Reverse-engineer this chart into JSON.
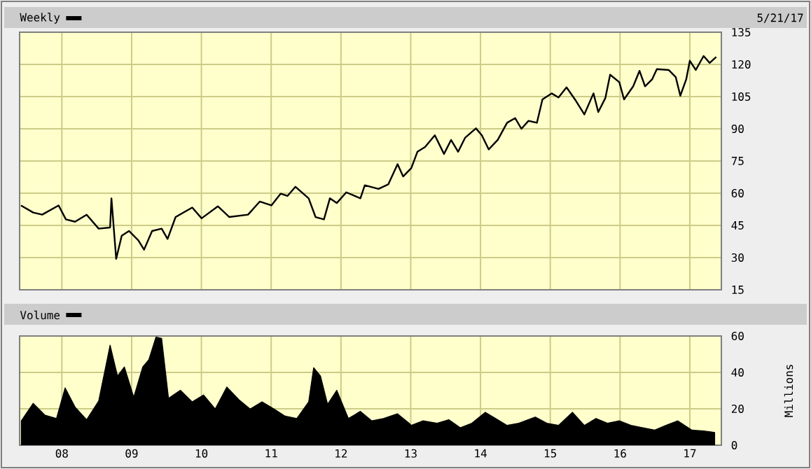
{
  "chart_data": [
    {
      "type": "line",
      "annotations": [
        "5/21/17"
      ],
      "legend": "top left",
      "grid": true,
      "tick_labels": "y",
      "line_style": "solid",
      "xlim": [
        "2007-05-25",
        "2017-06-15"
      ],
      "ylim": [
        15,
        135
      ],
      "yticks": [
        15,
        30,
        45,
        60,
        75,
        90,
        105,
        120,
        135
      ],
      "xticks": [
        {
          "value": "2008-01-01",
          "label": null
        },
        {
          "value": "2009-01-01",
          "label": null
        },
        {
          "value": "2010-01-01",
          "label": null
        },
        {
          "value": "2011-01-01",
          "label": null
        },
        {
          "value": "2012-01-01",
          "label": null
        },
        {
          "value": "2013-01-01",
          "label": null
        },
        {
          "value": "2014-01-01",
          "label": null
        },
        {
          "value": "2015-01-01",
          "label": null
        },
        {
          "value": "2016-01-01",
          "label": null
        },
        {
          "value": "2017-01-01",
          "label": null
        }
      ],
      "series": [
        {
          "name": "Weekly",
          "color": "#000000",
          "x": [
            "2007-06-01",
            "2007-08-04",
            "2007-09-20",
            "2007-12-15",
            "2008-01-22",
            "2008-03-10",
            "2008-05-10",
            "2008-07-12",
            "2008-09-10",
            "2008-09-17",
            "2008-10-12",
            "2008-11-10",
            "2008-12-18",
            "2009-02-05",
            "2009-03-07",
            "2009-04-18",
            "2009-06-07",
            "2009-07-08",
            "2009-08-19",
            "2009-11-14",
            "2010-01-02",
            "2010-03-28",
            "2010-05-27",
            "2010-09-02",
            "2010-11-02",
            "2011-01-02",
            "2011-02-20",
            "2011-03-27",
            "2011-05-08",
            "2011-07-16",
            "2011-08-21",
            "2011-10-04",
            "2011-11-04",
            "2011-12-10",
            "2012-01-29",
            "2012-04-12",
            "2012-05-05",
            "2012-07-16",
            "2012-09-05",
            "2012-10-24",
            "2012-11-22",
            "2013-01-04",
            "2013-02-05",
            "2013-03-17",
            "2013-05-07",
            "2013-06-24",
            "2013-07-31",
            "2013-09-06",
            "2013-10-13",
            "2013-12-08",
            "2014-01-08",
            "2014-02-13",
            "2014-04-01",
            "2014-05-20",
            "2014-07-01",
            "2014-08-03",
            "2014-09-09",
            "2014-10-23",
            "2014-11-21",
            "2015-01-08",
            "2015-02-13",
            "2015-03-27",
            "2015-05-10",
            "2015-06-28",
            "2015-08-15",
            "2015-09-09",
            "2015-10-16",
            "2015-11-10",
            "2015-12-28",
            "2016-01-22",
            "2016-03-10",
            "2016-04-12",
            "2016-05-11",
            "2016-06-17",
            "2016-07-12",
            "2016-09-12",
            "2016-10-19",
            "2016-11-12",
            "2016-12-13",
            "2017-01-01",
            "2017-02-01",
            "2017-03-14",
            "2017-04-15",
            "2017-05-19"
          ],
          "values": [
            54.3,
            51,
            50,
            54.3,
            47.8,
            46.7,
            50,
            43.5,
            44,
            57.6,
            29.4,
            40.2,
            42.4,
            38,
            33.7,
            42.4,
            43.5,
            38.7,
            48.9,
            53.3,
            48.3,
            53.9,
            48.9,
            50,
            56.1,
            54.3,
            59.8,
            58.7,
            63,
            57.6,
            48.9,
            47.8,
            57.6,
            55.4,
            60.4,
            57.6,
            63.7,
            62,
            64.1,
            73.5,
            67.8,
            71.7,
            79.3,
            81.5,
            87,
            78.3,
            84.8,
            79.3,
            85.9,
            90.2,
            87,
            80.4,
            84.8,
            92.8,
            95,
            90,
            93.7,
            92.8,
            103.7,
            106.5,
            104.6,
            109.3,
            103.7,
            96.7,
            106.5,
            97.8,
            104.3,
            115.2,
            111.7,
            103.7,
            109.8,
            117,
            109.8,
            113,
            117.8,
            117.4,
            114.1,
            105.4,
            113,
            121.7,
            117.4,
            123.9,
            120.7,
            123.5
          ]
        }
      ]
    },
    {
      "type": "area",
      "ylabel": "Millions",
      "legend": "top left",
      "grid": true,
      "xlim": [
        "2007-05-25",
        "2017-06-15"
      ],
      "ylim": [
        0,
        60
      ],
      "yticks": [
        0,
        20,
        40,
        60
      ],
      "xticks": [
        {
          "value": "2008-01-01",
          "label": "08"
        },
        {
          "value": "2009-01-01",
          "label": "09"
        },
        {
          "value": "2010-01-01",
          "label": "10"
        },
        {
          "value": "2011-01-01",
          "label": "11"
        },
        {
          "value": "2012-01-01",
          "label": "12"
        },
        {
          "value": "2013-01-01",
          "label": "13"
        },
        {
          "value": "2014-01-01",
          "label": "14"
        },
        {
          "value": "2015-01-01",
          "label": "15"
        },
        {
          "value": "2016-01-01",
          "label": "16"
        },
        {
          "value": "2017-01-01",
          "label": "17"
        }
      ],
      "series": [
        {
          "name": "Volume",
          "color": "#000000",
          "x": [
            "2007-06-03",
            "2007-08-04",
            "2007-10-05",
            "2007-12-04",
            "2008-01-18",
            "2008-03-10",
            "2008-05-10",
            "2008-07-12",
            "2008-09-10",
            "2008-10-19",
            "2008-11-24",
            "2009-01-12",
            "2009-02-28",
            "2009-04-01",
            "2009-05-08",
            "2009-06-07",
            "2009-07-13",
            "2009-09-13",
            "2009-11-14",
            "2010-01-12",
            "2010-03-14",
            "2010-05-14",
            "2010-07-16",
            "2010-09-13",
            "2010-11-14",
            "2011-01-16",
            "2011-03-15",
            "2011-05-15",
            "2011-07-16",
            "2011-08-11",
            "2011-09-16",
            "2011-10-23",
            "2011-12-10",
            "2012-02-09",
            "2012-04-12",
            "2012-06-11",
            "2012-08-11",
            "2012-10-23",
            "2012-12-23",
            "2013-01-04",
            "2013-03-07",
            "2013-05-19",
            "2013-07-19",
            "2013-09-17",
            "2013-11-17",
            "2014-01-26",
            "2014-03-21",
            "2014-05-20",
            "2014-07-20",
            "2014-10-15",
            "2014-12-14",
            "2015-02-13",
            "2015-04-27",
            "2015-06-28",
            "2015-08-28",
            "2015-10-27",
            "2015-12-28",
            "2016-02-27",
            "2016-04-30",
            "2016-07-01",
            "2016-08-29",
            "2016-10-30",
            "2017-01-12",
            "2017-03-14",
            "2017-05-11"
          ],
          "values": [
            13.4,
            23,
            16.5,
            14.7,
            31.5,
            21,
            14,
            24.3,
            55,
            38,
            43,
            26.4,
            43,
            47,
            59.4,
            58.7,
            25.8,
            30.2,
            23.8,
            27.6,
            19.9,
            32,
            25,
            19.9,
            23.8,
            19.9,
            16,
            14.7,
            23.8,
            42.6,
            38,
            22.5,
            30.2,
            14.7,
            18.6,
            13.4,
            14.7,
            17.3,
            12.1,
            10.9,
            13.4,
            12.1,
            14,
            9.6,
            12.1,
            18.1,
            14.7,
            10.9,
            12.1,
            15.5,
            12.1,
            10.9,
            18.1,
            10.9,
            14.7,
            12.1,
            13.4,
            10.9,
            9.6,
            8.3,
            10.9,
            13.4,
            8.3,
            7.8,
            7
          ]
        }
      ]
    }
  ]
}
